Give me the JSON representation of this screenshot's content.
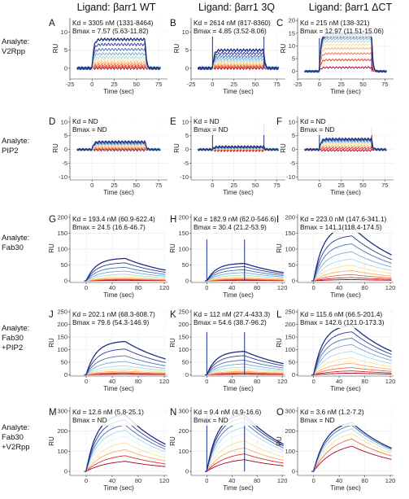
{
  "column_headers": [
    "Ligand: βarr1 WT",
    "Ligand: βarr1 3Q",
    "Ligand: βarr1 ΔCT"
  ],
  "row_labels": [
    [
      "Analyte:",
      "V2Rpp"
    ],
    [
      "Analyte:",
      "PIP2"
    ],
    [
      "Analyte:",
      "Fab30"
    ],
    [
      "Analyte:",
      "Fab30",
      "+PIP2"
    ],
    [
      "Analyte:",
      "Fab30",
      "+V2Rpp"
    ]
  ],
  "colors": {
    "ramp": [
      "#a50026",
      "#d73027",
      "#f46d43",
      "#fdae61",
      "#fee090",
      "#e0f3f8",
      "#abd9e9",
      "#74add1",
      "#4575b4",
      "#313695",
      "#1f2f80"
    ]
  },
  "chart_data": [
    {
      "panel": "A",
      "type": "line",
      "xlabel": "Time (sec)",
      "ylabel": "RU",
      "xlim": [
        -25,
        85
      ],
      "ylim": [
        -3,
        14
      ],
      "xticks": [
        -25,
        0,
        25,
        50,
        75
      ],
      "yticks": [
        0,
        5,
        10
      ],
      "annotation": [
        "Kd = 3305 nM (1331-8464)",
        "Bmax = 7.57 (5.63-11.82)"
      ],
      "model": "ss",
      "assoc_end": 60,
      "spike": 0,
      "n": 10,
      "plateaus": [
        0,
        0.4,
        0.9,
        1.5,
        2.2,
        3.0,
        4.0,
        5.2,
        6.6,
        8.0
      ]
    },
    {
      "panel": "B",
      "type": "line",
      "xlabel": "Time (sec)",
      "ylabel": "RU",
      "xlim": [
        -25,
        85
      ],
      "ylim": [
        -3,
        14
      ],
      "xticks": [
        -25,
        0,
        25,
        50,
        75
      ],
      "yticks": [
        0,
        5,
        10
      ],
      "annotation": [
        "Kd = 2614 nM (817-8360)",
        "Bmax = 4.85 (3.52-8.06)"
      ],
      "model": "ss",
      "assoc_end": 60,
      "spike": 11,
      "n": 10,
      "plateaus": [
        0,
        0.3,
        0.6,
        1.0,
        1.5,
        2.0,
        2.6,
        3.3,
        4.1,
        5.0
      ]
    },
    {
      "panel": "C",
      "type": "line",
      "xlabel": "Time (sec)",
      "ylabel": "RU",
      "xlim": [
        -25,
        85
      ],
      "ylim": [
        -3,
        21
      ],
      "xticks": [
        -25,
        0,
        25,
        50,
        75
      ],
      "yticks": [
        0,
        5,
        10,
        15,
        20
      ],
      "annotation": [
        "Kd = 215 nM (138-321)",
        "Bmax = 12.97 (11.51-15.06)"
      ],
      "model": "ss",
      "assoc_end": 60,
      "spike": 13,
      "n": 10,
      "plateaus": [
        1.5,
        4.5,
        7.0,
        9.0,
        10.5,
        11.8,
        12.8,
        13.6,
        14.2,
        14.8
      ]
    },
    {
      "panel": "D",
      "type": "line",
      "xlabel": "Time (sec)",
      "ylabel": "RU",
      "xlim": [
        -25,
        85
      ],
      "ylim": [
        -11,
        12
      ],
      "xticks": [
        0,
        25,
        50,
        75
      ],
      "yticks": [
        -10,
        -5,
        0,
        5,
        10
      ],
      "annotation": [
        "Kd = ND",
        "Bmax = ND"
      ],
      "model": "ss",
      "assoc_end": 60,
      "spike": 0,
      "n": 8,
      "plateaus": [
        -0.2,
        0.3,
        0.8,
        1.2,
        1.6,
        2.0,
        2.4,
        2.8
      ]
    },
    {
      "panel": "E",
      "type": "line",
      "xlabel": "Time (sec)",
      "ylabel": "RU",
      "xlim": [
        -25,
        85
      ],
      "ylim": [
        -11,
        12
      ],
      "xticks": [
        0,
        25,
        50,
        75
      ],
      "yticks": [
        -10,
        -5,
        0,
        5,
        10
      ],
      "annotation": [
        "Kd = ND",
        "Bmax = ND"
      ],
      "model": "ss",
      "assoc_end": 60,
      "spike": 9,
      "n": 8,
      "plateaus": [
        -0.4,
        -0.2,
        0,
        0.2,
        0.4,
        0.6,
        0.8,
        1.0
      ]
    },
    {
      "panel": "F",
      "type": "line",
      "xlabel": "Time (sec)",
      "ylabel": "RU",
      "xlim": [
        -25,
        85
      ],
      "ylim": [
        -11,
        12
      ],
      "xticks": [
        0,
        25,
        50,
        75
      ],
      "yticks": [
        -10,
        -5,
        0,
        5,
        10
      ],
      "annotation": [
        "Kd = ND",
        "Bmax = ND"
      ],
      "model": "ss",
      "assoc_end": 60,
      "spike": 8,
      "n": 8,
      "plateaus": [
        -0.3,
        0.5,
        1.2,
        2.0,
        2.6,
        3.0,
        3.4,
        3.8
      ]
    },
    {
      "panel": "G",
      "type": "line",
      "xlabel": "Time (sec)",
      "ylabel": "RU",
      "xlim": [
        -25,
        125
      ],
      "ylim": [
        -5,
        210
      ],
      "xticks": [
        0,
        40,
        80,
        120
      ],
      "yticks": [
        0,
        50,
        100,
        150,
        200
      ],
      "annotation": [
        "Kd = 193.4 nM (60.9-622.4)",
        "Bmax = 24.5 (16.6-46.7)"
      ],
      "model": "kin",
      "assoc_end": 60,
      "spike": 0,
      "n": 10,
      "plateaus": [
        2,
        4,
        6,
        9,
        14,
        22,
        32,
        44,
        58,
        72
      ]
    },
    {
      "panel": "H",
      "type": "line",
      "xlabel": "Time (sec)",
      "ylabel": "RU",
      "xlim": [
        -25,
        125
      ],
      "ylim": [
        -5,
        210
      ],
      "xticks": [
        0,
        40,
        80,
        120
      ],
      "yticks": [
        0,
        50,
        100,
        150,
        200
      ],
      "annotation": [
        "Kd = 182.9 nM (62.0-546.6)",
        "Bmax = 30.4 (21.2-53.9)"
      ],
      "model": "kin",
      "assoc_end": 60,
      "spike": 130,
      "n": 10,
      "plateaus": [
        2,
        4,
        6,
        9,
        13,
        19,
        27,
        36,
        46,
        56
      ]
    },
    {
      "panel": "I",
      "type": "line",
      "xlabel": "Time (sec)",
      "ylabel": "RU",
      "xlim": [
        -25,
        125
      ],
      "ylim": [
        -5,
        210
      ],
      "xticks": [
        0,
        40,
        80,
        120
      ],
      "yticks": [
        0,
        50,
        100,
        150,
        200
      ],
      "annotation": [
        "Kd = 223.0 nM (147.6-341.1)",
        "Bmax = 141.1(118.4-174.5)"
      ],
      "model": "kin",
      "assoc_end": 60,
      "spike": 0,
      "n": 10,
      "plateaus": [
        5,
        12,
        22,
        35,
        52,
        72,
        95,
        120,
        145,
        175
      ]
    },
    {
      "panel": "J",
      "type": "line",
      "xlabel": "Time (sec)",
      "ylabel": "RU",
      "xlim": [
        -25,
        125
      ],
      "ylim": [
        -5,
        260
      ],
      "xticks": [
        0,
        40,
        80,
        120
      ],
      "yticks": [
        0,
        50,
        100,
        150,
        200,
        250
      ],
      "annotation": [
        "Kd = 202.1 nM (68.3-608.7)",
        "Bmax = 79.6 (54.3-146.9)"
      ],
      "model": "kin",
      "assoc_end": 60,
      "spike": 0,
      "n": 10,
      "plateaus": [
        3,
        6,
        10,
        16,
        25,
        38,
        55,
        78,
        105,
        135
      ]
    },
    {
      "panel": "K",
      "type": "line",
      "xlabel": "Time (sec)",
      "ylabel": "RU",
      "xlim": [
        -25,
        125
      ],
      "ylim": [
        -5,
        260
      ],
      "xticks": [
        0,
        40,
        80,
        120
      ],
      "yticks": [
        0,
        50,
        100,
        150,
        200,
        250
      ],
      "annotation": [
        "Kd = 112 nM (27.4-433.3)",
        "Bmax = 54.6 (38.7-96.2)"
      ],
      "model": "kin",
      "assoc_end": 60,
      "spike": 170,
      "n": 10,
      "plateaus": [
        3,
        6,
        10,
        15,
        22,
        32,
        45,
        60,
        78,
        95
      ]
    },
    {
      "panel": "L",
      "type": "line",
      "xlabel": "Time (sec)",
      "ylabel": "RU",
      "xlim": [
        -25,
        125
      ],
      "ylim": [
        -5,
        260
      ],
      "xticks": [
        0,
        40,
        80,
        120
      ],
      "yticks": [
        0,
        50,
        100,
        150,
        200,
        250
      ],
      "annotation": [
        "Kd = 115.6 nM (66.5-201.4)",
        "Bmax = 142.6 (121.0-173.3)"
      ],
      "model": "kin",
      "assoc_end": 60,
      "spike": 0,
      "n": 10,
      "plateaus": [
        8,
        18,
        32,
        50,
        72,
        98,
        125,
        150,
        175,
        200
      ]
    },
    {
      "panel": "M",
      "type": "line",
      "xlabel": "Time (sec)",
      "ylabel": "RU",
      "xlim": [
        -25,
        125
      ],
      "ylim": [
        -20,
        320
      ],
      "xticks": [
        0,
        40,
        80,
        120
      ],
      "yticks": [
        0,
        100,
        200,
        300
      ],
      "annotation": [
        "Kd = 12.6 nM (5.8-25.1)",
        "Bmax = ND"
      ],
      "model": "kin",
      "assoc_end": 60,
      "spike": 0,
      "n": 9,
      "plateaus": [
        60,
        90,
        120,
        155,
        185,
        215,
        240,
        265,
        290
      ]
    },
    {
      "panel": "N",
      "type": "line",
      "xlabel": "Time (sec)",
      "ylabel": "RU",
      "xlim": [
        -25,
        125
      ],
      "ylim": [
        -20,
        320
      ],
      "xticks": [
        0,
        40,
        80,
        120
      ],
      "yticks": [
        0,
        100,
        200,
        300
      ],
      "annotation": [
        "Kd = 9.4 nM (4.9-16.6)",
        "Bmax = ND"
      ],
      "model": "kin",
      "assoc_end": 60,
      "spike": 290,
      "n": 9,
      "plateaus": [
        70,
        100,
        130,
        165,
        200,
        230,
        255,
        275,
        290
      ]
    },
    {
      "panel": "O",
      "type": "line",
      "xlabel": "Time (sec)",
      "ylabel": "RU",
      "xlim": [
        -25,
        125
      ],
      "ylim": [
        -20,
        320
      ],
      "xticks": [
        0,
        40,
        80,
        120
      ],
      "yticks": [
        0,
        100,
        200,
        300
      ],
      "annotation": [
        "Kd = 3.6 nM (1.2-7.2)",
        "Bmax = ND"
      ],
      "model": "kin",
      "assoc_end": 60,
      "spike": 0,
      "n": 6,
      "plateaus": [
        150,
        185,
        210,
        230,
        245,
        255
      ]
    }
  ]
}
